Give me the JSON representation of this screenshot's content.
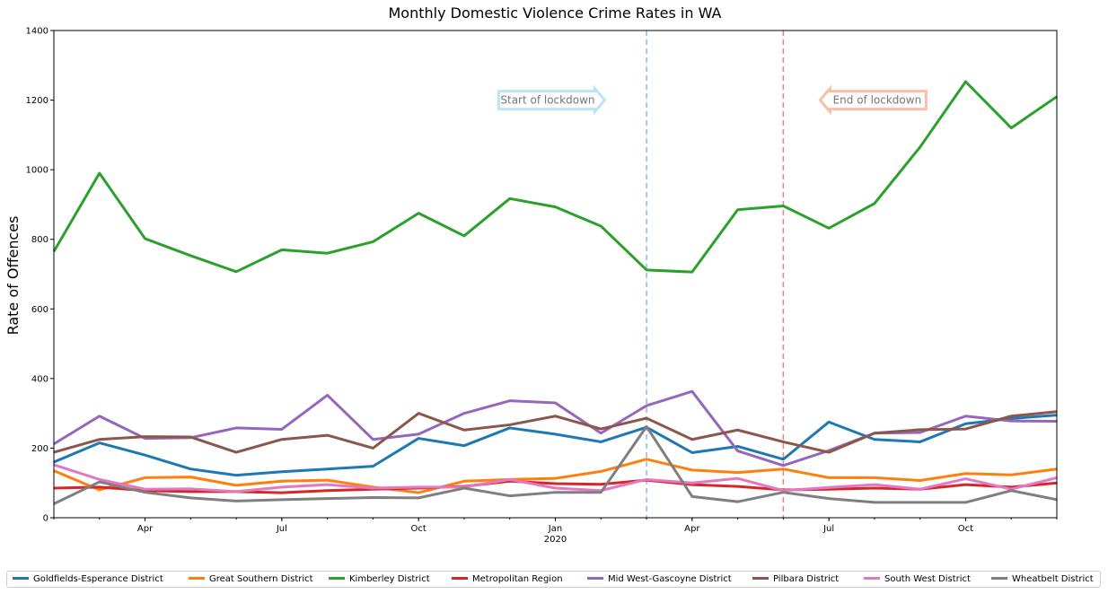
{
  "chart_data": {
    "type": "line",
    "title": "Monthly Domestic Violence Crime Rates in WA",
    "xlabel": "",
    "ylabel": "Rate of Offences",
    "ylim": [
      0,
      1400
    ],
    "yticks": [
      0,
      200,
      400,
      600,
      800,
      1000,
      1200,
      1400
    ],
    "x_months": [
      "2019-02",
      "2019-03",
      "2019-04",
      "2019-05",
      "2019-06",
      "2019-07",
      "2019-08",
      "2019-09",
      "2019-10",
      "2019-11",
      "2019-12",
      "2020-01",
      "2020-02",
      "2020-03",
      "2020-04",
      "2020-05",
      "2020-06",
      "2020-07",
      "2020-08",
      "2020-09",
      "2020-10",
      "2020-11",
      "2020-12"
    ],
    "xticks": [
      {
        "index": 2,
        "label": "Apr"
      },
      {
        "index": 5,
        "label": "Jul"
      },
      {
        "index": 8,
        "label": "Oct"
      },
      {
        "index": 11,
        "label": "Jan",
        "sublabel": "2020"
      },
      {
        "index": 14,
        "label": "Apr"
      },
      {
        "index": 17,
        "label": "Jul"
      },
      {
        "index": 20,
        "label": "Oct"
      }
    ],
    "grid": false,
    "legend_position": "bottom",
    "series": [
      {
        "name": "Goldfields-Esperance District",
        "color": "#1f77b4",
        "values": [
          160,
          215,
          180,
          140,
          122,
          132,
          140,
          148,
          228,
          207,
          258,
          240,
          218,
          260,
          187,
          205,
          168,
          275,
          225,
          218,
          270,
          285,
          295
        ]
      },
      {
        "name": "Great Southern District",
        "color": "#ff7f0e",
        "values": [
          135,
          80,
          115,
          117,
          93,
          105,
          108,
          88,
          72,
          105,
          110,
          113,
          133,
          168,
          137,
          130,
          140,
          115,
          115,
          107,
          127,
          123,
          140
        ]
      },
      {
        "name": "Kimberley District",
        "color": "#2ca02c",
        "values": [
          765,
          990,
          802,
          753,
          707,
          770,
          760,
          793,
          875,
          810,
          917,
          893,
          838,
          712,
          706,
          885,
          896,
          832,
          903,
          1065,
          1253,
          1120,
          1210
        ]
      },
      {
        "name": "Metropolitan Region",
        "color": "#d62728",
        "values": [
          85,
          88,
          78,
          75,
          75,
          72,
          78,
          82,
          85,
          90,
          105,
          98,
          96,
          108,
          95,
          90,
          80,
          82,
          85,
          82,
          95,
          88,
          100
        ]
      },
      {
        "name": "Mid West-Gascoyne District",
        "color": "#9467bd",
        "values": [
          212,
          292,
          228,
          230,
          258,
          254,
          352,
          225,
          240,
          300,
          336,
          330,
          243,
          322,
          363,
          192,
          150,
          193,
          243,
          245,
          292,
          278,
          277
        ]
      },
      {
        "name": "Pilbara District",
        "color": "#8c564b",
        "values": [
          188,
          225,
          233,
          232,
          188,
          225,
          237,
          200,
          300,
          252,
          267,
          292,
          255,
          286,
          225,
          252,
          218,
          188,
          243,
          253,
          255,
          292,
          305
        ]
      },
      {
        "name": "South West District",
        "color": "#e377c2",
        "values": [
          152,
          110,
          82,
          83,
          75,
          88,
          95,
          85,
          88,
          88,
          110,
          85,
          78,
          110,
          100,
          113,
          78,
          87,
          95,
          82,
          112,
          82,
          115
        ]
      },
      {
        "name": "Wheatbelt District",
        "color": "#7f7f7f",
        "values": [
          40,
          103,
          73,
          57,
          48,
          52,
          55,
          58,
          57,
          85,
          63,
          73,
          73,
          262,
          61,
          46,
          73,
          55,
          44,
          44,
          44,
          78,
          52
        ]
      }
    ],
    "vlines": [
      {
        "name": "lockdown-start-line",
        "month": "2020-03",
        "color": "#8fb8e8"
      },
      {
        "name": "lockdown-end-line",
        "month": "2020-06",
        "color": "#f08080"
      }
    ],
    "annotations": [
      {
        "name": "start-of-lockdown-annotation",
        "text": "Start of lockdown",
        "direction": "right",
        "month_position": 10.92,
        "y": 1200,
        "border_color": "#bde4f2"
      },
      {
        "name": "end-of-lockdown-annotation",
        "text": "End of lockdown",
        "direction": "left",
        "month_position": 17.97,
        "y": 1200,
        "border_color": "#f7bfa8"
      }
    ]
  }
}
